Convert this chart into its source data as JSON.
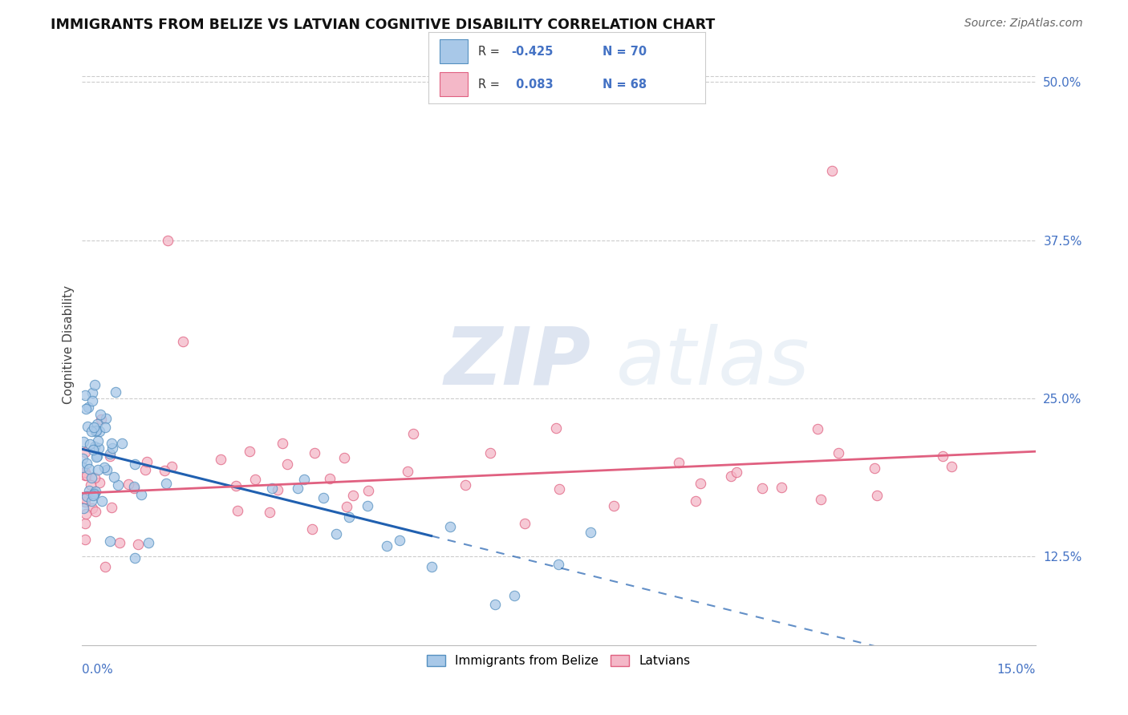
{
  "title": "IMMIGRANTS FROM BELIZE VS LATVIAN COGNITIVE DISABILITY CORRELATION CHART",
  "source": "Source: ZipAtlas.com",
  "ylabel": "Cognitive Disability",
  "right_yticks": [
    12.5,
    25.0,
    37.5,
    50.0
  ],
  "xmin": 0.0,
  "xmax": 15.0,
  "ymin": 5.5,
  "ymax": 53.0,
  "blue_color": "#a8c8e8",
  "pink_color": "#f4b8c8",
  "blue_edge": "#5590c0",
  "pink_edge": "#e06080",
  "trend_blue_color": "#2060b0",
  "trend_pink_color": "#e06080",
  "legend_blue_label": "Immigrants from Belize",
  "legend_pink_label": "Latvians",
  "watermark_zip": "ZIP",
  "watermark_atlas": "atlas"
}
